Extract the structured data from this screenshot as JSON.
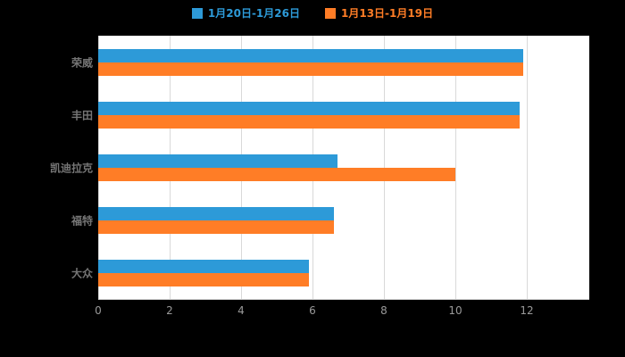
{
  "legend": {
    "items": [
      {
        "label": "1月20日-1月26日",
        "color": "#2d9ad8"
      },
      {
        "label": "1月13日-1月19日",
        "color": "#ff7d26"
      }
    ],
    "position": "top"
  },
  "colors": {
    "page_background": "#000000",
    "plot_background": "#ffffff",
    "gridline": "#d9d9d9",
    "tick_label": "#999999",
    "category_label": "#757575",
    "series_blue": "#2d9ad8",
    "series_orange": "#ff7d26"
  },
  "chart_data": {
    "type": "bar",
    "orientation": "horizontal",
    "title": "",
    "xlabel": "",
    "ylabel": "",
    "categories": [
      "荣威",
      "丰田",
      "凯迪拉克",
      "福特",
      "大众"
    ],
    "series": [
      {
        "name": "1月20日-1月26日",
        "color": "#2d9ad8",
        "values": [
          11.9,
          11.8,
          6.7,
          6.6,
          5.9
        ]
      },
      {
        "name": "1月13日-1月19日",
        "color": "#ff7d26",
        "values": [
          11.9,
          11.8,
          10.0,
          6.6,
          5.9
        ]
      }
    ],
    "xticks": [
      0,
      2,
      4,
      6,
      8,
      10,
      12
    ],
    "xlim": [
      0,
      13.75
    ],
    "grid": true,
    "legend_position": "top"
  }
}
